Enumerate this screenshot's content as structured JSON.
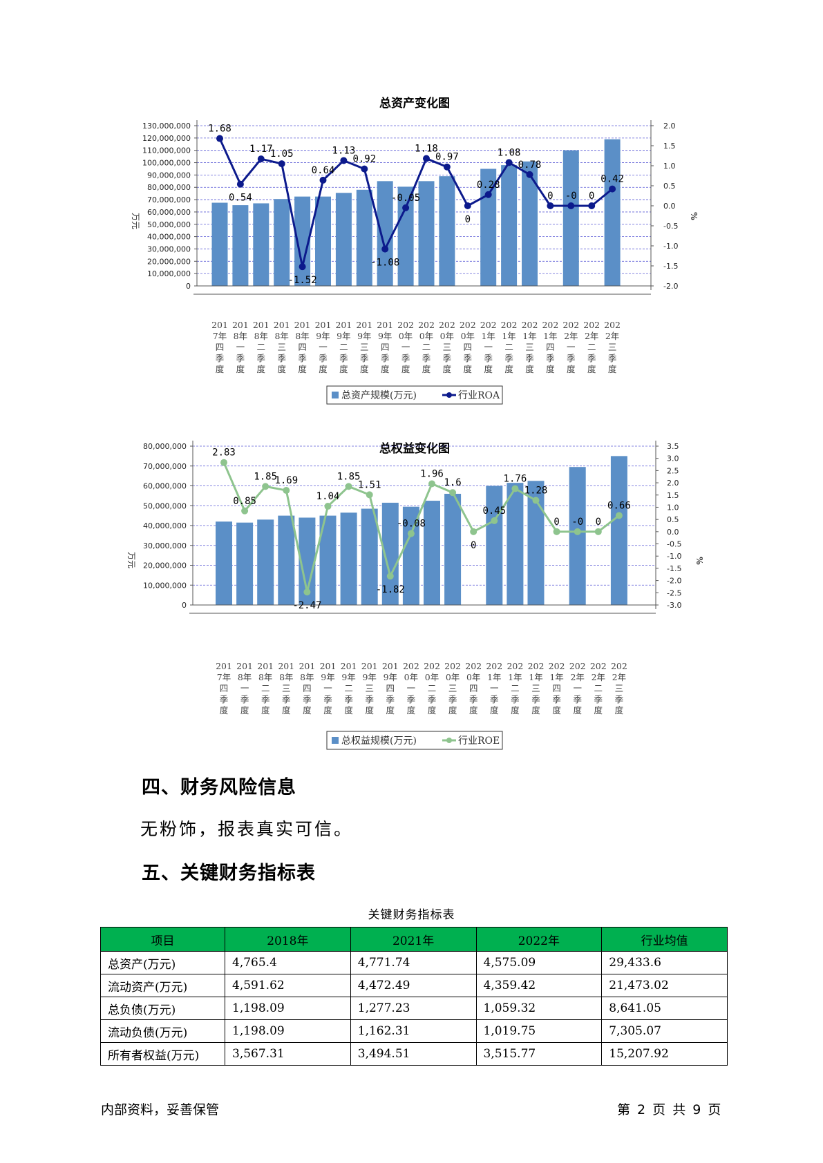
{
  "charts": {
    "assets": {
      "title": "总资产变化图",
      "bar_legend": "总资产规模(万元)",
      "line_legend": "行业ROA",
      "left_unit": "万元",
      "right_unit": "%",
      "left_ticks": [
        "0",
        "10,000,000",
        "20,000,000",
        "30,000,000",
        "40,000,000",
        "50,000,000",
        "60,000,000",
        "70,000,000",
        "80,000,000",
        "90,000,000",
        "100,000,000",
        "110,000,000",
        "120,000,000",
        "130,000,000"
      ],
      "right_ticks": [
        "-2.0",
        "-1.5",
        "-1.0",
        "-0.5",
        "0.0",
        "0.5",
        "1.0",
        "1.5",
        "2.0"
      ]
    },
    "equity": {
      "title": "总权益变化图",
      "bar_legend": "总权益规模(万元)",
      "line_legend": "行业ROE",
      "left_unit": "万元",
      "right_unit": "%",
      "left_ticks": [
        "0",
        "10,000,000",
        "20,000,000",
        "30,000,000",
        "40,000,000",
        "50,000,000",
        "60,000,000",
        "70,000,000",
        "80,000,000"
      ],
      "right_ticks": [
        "-3.0",
        "-2.5",
        "-2.0",
        "-1.5",
        "-1.0",
        "-0.5",
        "0.0",
        "0.5",
        "1.0",
        "1.5",
        "2.0",
        "2.5",
        "3.0",
        "3.5"
      ]
    }
  },
  "chart_data": [
    {
      "type": "bar+line",
      "title": "总资产变化图",
      "categories": [
        "2017年四季度",
        "2018年一季度",
        "2018年二季度",
        "2018年三季度",
        "2018年四季度",
        "2019年一季度",
        "2019年二季度",
        "2019年三季度",
        "2019年四季度",
        "2020年一季度",
        "2020年二季度",
        "2020年三季度",
        "2020年四季度",
        "2021年一季度",
        "2021年二季度",
        "2021年三季度",
        "2021年四季度",
        "2022年一季度",
        "2022年二季度",
        "2022年三季度"
      ],
      "series": [
        {
          "name": "总资产规模(万元)",
          "axis": "left",
          "kind": "bar",
          "values": [
            67500000,
            65500000,
            67000000,
            70500000,
            72500000,
            72500000,
            75500000,
            78000000,
            85000000,
            80500000,
            85000000,
            89000000,
            null,
            95000000,
            98000000,
            101000000,
            null,
            110000000,
            null,
            119000000
          ]
        },
        {
          "name": "行业ROA",
          "axis": "right",
          "kind": "line",
          "values": [
            1.68,
            0.54,
            1.17,
            1.05,
            -1.52,
            0.64,
            1.13,
            0.92,
            -1.08,
            -0.05,
            1.18,
            0.97,
            0,
            0.28,
            1.08,
            0.78,
            0,
            0,
            0,
            0.42
          ],
          "labels": [
            "1.68",
            "0.54",
            "1.17",
            "1.05",
            "-1.52",
            "0.64",
            "1.13",
            "0.92",
            "-1.08",
            "-0.05",
            "1.18",
            "0.97",
            "0",
            "0.28",
            "1.08",
            "0.78",
            "0",
            "-0",
            "0",
            "0.42"
          ]
        }
      ],
      "ylim_left": [
        0,
        130000000
      ],
      "ylim_right": [
        -2.0,
        2.0
      ],
      "ylabel_left": "万元",
      "ylabel_right": "%",
      "grid": true,
      "legend": "bottom"
    },
    {
      "type": "bar+line",
      "title": "总权益变化图",
      "categories": [
        "2017年四季度",
        "2018年一季度",
        "2018年二季度",
        "2018年三季度",
        "2018年四季度",
        "2019年一季度",
        "2019年二季度",
        "2019年三季度",
        "2019年四季度",
        "2020年一季度",
        "2020年二季度",
        "2020年三季度",
        "2020年四季度",
        "2021年一季度",
        "2021年二季度",
        "2021年三季度",
        "2021年四季度",
        "2022年一季度",
        "2022年二季度",
        "2022年三季度"
      ],
      "series": [
        {
          "name": "总权益规模(万元)",
          "axis": "left",
          "kind": "bar",
          "values": [
            42000000,
            41500000,
            43000000,
            45000000,
            44000000,
            45000000,
            46500000,
            48500000,
            51500000,
            49500000,
            52500000,
            56000000,
            null,
            60000000,
            61500000,
            62500000,
            null,
            69500000,
            null,
            75000000
          ]
        },
        {
          "name": "行业ROE",
          "axis": "right",
          "kind": "line",
          "values": [
            2.83,
            0.85,
            1.85,
            1.69,
            -2.47,
            1.04,
            1.85,
            1.51,
            -1.82,
            -0.08,
            1.96,
            1.6,
            0,
            0.45,
            1.76,
            1.28,
            0,
            0,
            0,
            0.66
          ],
          "labels": [
            "2.83",
            "0.85",
            "1.85",
            "1.69",
            "-2.47",
            "1.04",
            "1.85",
            "1.51",
            "-1.82",
            "-0.08",
            "1.96",
            "1.6",
            "0",
            "0.45",
            "1.76",
            "1.28",
            "0",
            "-0",
            "0",
            "0.66"
          ]
        }
      ],
      "ylim_left": [
        0,
        80000000
      ],
      "ylim_right": [
        -3.0,
        3.5
      ],
      "ylabel_left": "万元",
      "ylabel_right": "%",
      "grid": true,
      "legend": "bottom"
    }
  ],
  "sections": {
    "risk_heading": "四、财务风险信息",
    "risk_text": "无粉饰，报表真实可信。",
    "kpi_heading": "五、关键财务指标表"
  },
  "kpi_table": {
    "caption": "关键财务指标表",
    "headers": [
      "项目",
      "2018年",
      "2021年",
      "2022年",
      "行业均值"
    ],
    "rows": [
      [
        "总资产(万元)",
        "4,765.4",
        "4,771.74",
        "4,575.09",
        "29,433.6"
      ],
      [
        "流动资产(万元)",
        "4,591.62",
        "4,472.49",
        "4,359.42",
        "21,473.02"
      ],
      [
        "总负债(万元)",
        "1,198.09",
        "1,277.23",
        "1,059.32",
        "8,641.05"
      ],
      [
        "流动负债(万元)",
        "1,198.09",
        "1,162.31",
        "1,019.75",
        "7,305.07"
      ],
      [
        "所有者权益(万元)",
        "3,567.31",
        "3,494.51",
        "3,515.77",
        "15,207.92"
      ]
    ]
  },
  "footer": {
    "left": "内部资料，妥善保管",
    "right": "第 2 页  共 9 页"
  },
  "colors": {
    "bar": "#5b8fc7",
    "roa_line": "#0c1a8c",
    "roe_line": "#8ec48e",
    "table_header": "#00b050",
    "grid": "#3333cc"
  }
}
